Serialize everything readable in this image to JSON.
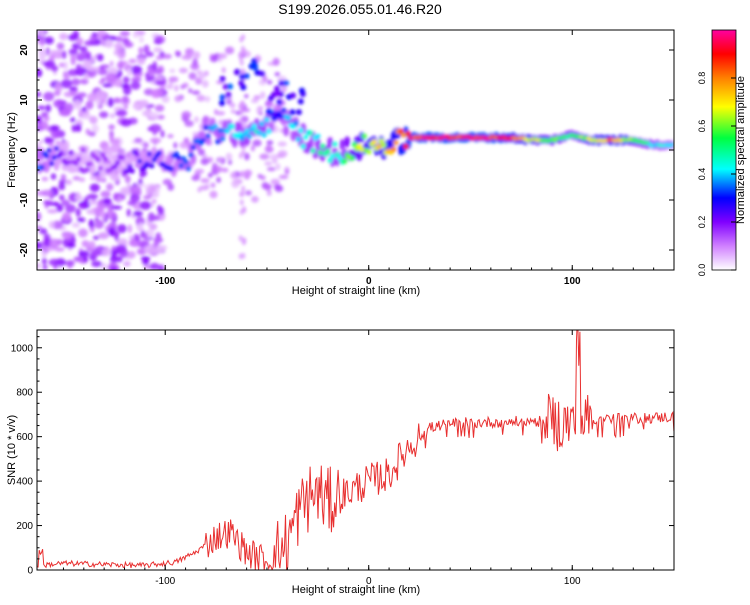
{
  "title": "S199.2026.055.01.46.R20",
  "chart_data": [
    {
      "type": "heatmap",
      "title": "S199.2026.055.01.46.R20",
      "xlabel": "Height of straight line (km)",
      "ylabel": "Frequency (Hz)",
      "xlim": [
        -163,
        150
      ],
      "ylim": [
        -24,
        24
      ],
      "xticks": [
        -100,
        0,
        100
      ],
      "xtick_labels": [
        "-100",
        "0",
        "100"
      ],
      "yticks": [
        -20,
        -10,
        0,
        10,
        20
      ],
      "ytick_labels": [
        "-20",
        "-10",
        "0",
        "10",
        "20"
      ],
      "colorbar": {
        "label": "Normalized spectral amplitude",
        "range": [
          0,
          1
        ],
        "ticks": [
          0.0,
          0.2,
          0.4,
          0.6,
          0.8
        ],
        "tick_labels": [
          "0.0",
          "0.2",
          "0.4",
          "0.6",
          "0.8"
        ],
        "colors": [
          "#ffffff",
          "#d080ff",
          "#8000ff",
          "#0000ff",
          "#00ffff",
          "#00ff40",
          "#ffff00",
          "#ff8000",
          "#ff0000",
          "#ff00a0"
        ]
      },
      "ridge": {
        "x": [
          -160,
          -150,
          -130,
          -110,
          -100,
          -90,
          -80,
          -70,
          -60,
          -50,
          -45,
          -40,
          -30,
          -20,
          -15,
          -10,
          0,
          10,
          20,
          40,
          60,
          70,
          80,
          90,
          100,
          110,
          120,
          130,
          140,
          150
        ],
        "freq": [
          -2,
          -1,
          -3,
          -2,
          -2,
          -3,
          4,
          3,
          3,
          5,
          8,
          5,
          2,
          0,
          -1,
          0,
          1,
          1,
          2.5,
          2.5,
          2.5,
          2.5,
          2,
          2,
          3,
          2,
          2,
          2,
          1,
          1
        ],
        "amplitude": [
          0.35,
          0.2,
          0.15,
          0.25,
          0.3,
          0.35,
          0.35,
          0.4,
          0.45,
          0.45,
          0.3,
          0.4,
          0.45,
          0.5,
          0.45,
          0.6,
          0.7,
          0.75,
          0.95,
          0.95,
          0.95,
          0.9,
          0.7,
          0.6,
          0.55,
          0.7,
          0.85,
          0.6,
          0.45,
          0.4
        ]
      }
    },
    {
      "type": "line",
      "xlabel": "Height of straight line (km)",
      "ylabel": "SNR (10 * v/v)",
      "xlim": [
        -163,
        150
      ],
      "ylim": [
        0,
        1080
      ],
      "xticks": [
        -100,
        0,
        100
      ],
      "xtick_labels": [
        "-100",
        "0",
        "100"
      ],
      "yticks": [
        0,
        200,
        400,
        600,
        800,
        1000
      ],
      "ytick_labels": [
        "0",
        "200",
        "400",
        "600",
        "800",
        "1000"
      ],
      "series": [
        {
          "name": "SNR",
          "color": "#e83030",
          "x": [
            -163,
            -150,
            -130,
            -110,
            -95,
            -85,
            -75,
            -68,
            -60,
            -50,
            -40,
            -35,
            -30,
            -25,
            -20,
            -15,
            -10,
            0,
            10,
            20,
            30,
            40,
            60,
            80,
            100,
            110,
            120,
            140,
            150
          ],
          "y": [
            20,
            30,
            25,
            20,
            35,
            80,
            150,
            170,
            80,
            40,
            120,
            250,
            320,
            350,
            300,
            330,
            350,
            400,
            430,
            560,
            640,
            660,
            665,
            670,
            660,
            680,
            680,
            685,
            690
          ]
        }
      ]
    }
  ]
}
